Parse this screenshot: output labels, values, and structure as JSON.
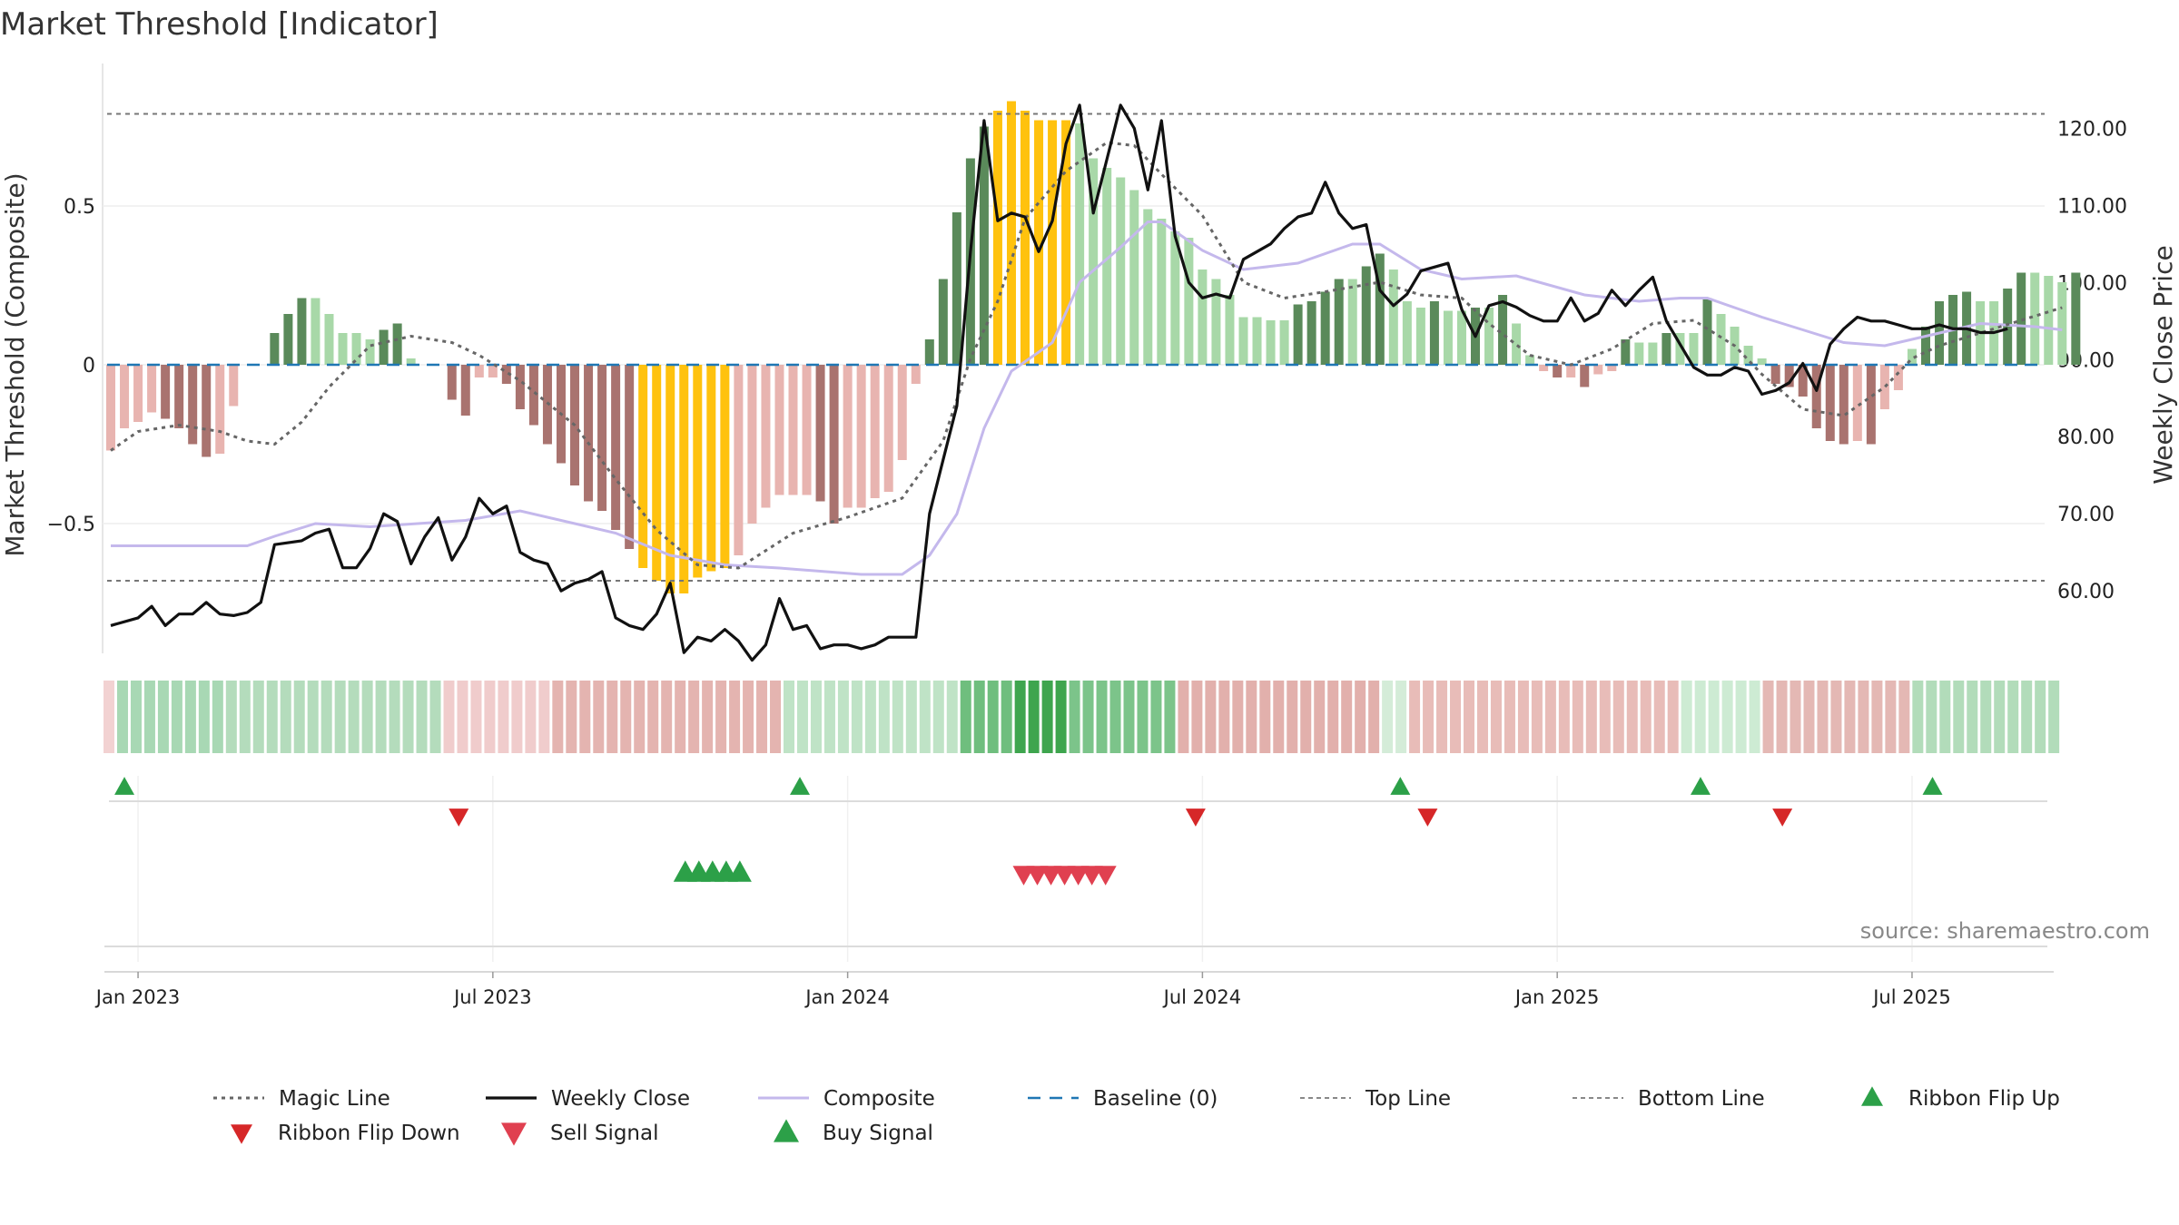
{
  "title": "Market Threshold [Indicator]",
  "source": "source: sharemaestro.com",
  "chart_data": {
    "type": "line",
    "y_left_label": "Market Threshold (Composite)",
    "y_right_label": "Weekly Close Price",
    "y_left_ticks": [
      {
        "v": 0.5,
        "label": "0.5"
      },
      {
        "v": 0,
        "label": "0"
      },
      {
        "v": -0.5,
        "label": "−0.5"
      }
    ],
    "y_left_lim": [
      -0.92,
      0.92
    ],
    "y_right_ticks": [
      "60.00",
      "70.00",
      "80.00",
      "90.00",
      "100.00",
      "110.00",
      "120.00"
    ],
    "y_right_tick_values": [
      60,
      70,
      80,
      90,
      100,
      110,
      120
    ],
    "y_right_lim": [
      51.9,
      128.4
    ],
    "top_line": 0.79,
    "bottom_line": -0.68,
    "x_ticks": [
      "Jan 2023",
      "Jul 2023",
      "Jan 2024",
      "Jul 2024",
      "Jan 2025",
      "Jul 2025"
    ],
    "x_tick_weeks": [
      2,
      28,
      54,
      80,
      106,
      132
    ],
    "composite": [
      [
        0,
        -0.57
      ],
      [
        10,
        -0.57
      ],
      [
        12,
        -0.54
      ],
      [
        15,
        -0.5
      ],
      [
        19,
        -0.51
      ],
      [
        26,
        -0.49
      ],
      [
        30,
        -0.46
      ],
      [
        37,
        -0.53
      ],
      [
        41,
        -0.6
      ],
      [
        45,
        -0.63
      ],
      [
        49,
        -0.64
      ],
      [
        55,
        -0.66
      ],
      [
        58,
        -0.66
      ],
      [
        60,
        -0.6
      ],
      [
        62,
        -0.47
      ],
      [
        64,
        -0.2
      ],
      [
        66,
        -0.02
      ],
      [
        69,
        0.07
      ],
      [
        71,
        0.26
      ],
      [
        74,
        0.37
      ],
      [
        76,
        0.45
      ],
      [
        77,
        0.45
      ],
      [
        80,
        0.36
      ],
      [
        83,
        0.3
      ],
      [
        87,
        0.32
      ],
      [
        91,
        0.38
      ],
      [
        93,
        0.38
      ],
      [
        96,
        0.3
      ],
      [
        99,
        0.27
      ],
      [
        103,
        0.28
      ],
      [
        108,
        0.22
      ],
      [
        112,
        0.2
      ],
      [
        115,
        0.21
      ],
      [
        117,
        0.21
      ],
      [
        121,
        0.15
      ],
      [
        124,
        0.11
      ],
      [
        127,
        0.07
      ],
      [
        130,
        0.06
      ],
      [
        133,
        0.09
      ],
      [
        137,
        0.13
      ],
      [
        141,
        0.12
      ],
      [
        143,
        0.11
      ]
    ],
    "magic_line": [
      [
        0,
        -0.27
      ],
      [
        2,
        -0.21
      ],
      [
        5,
        -0.19
      ],
      [
        8,
        -0.21
      ],
      [
        10,
        -0.24
      ],
      [
        12,
        -0.25
      ],
      [
        14,
        -0.18
      ],
      [
        16,
        -0.07
      ],
      [
        19,
        0.06
      ],
      [
        22,
        0.09
      ],
      [
        25,
        0.07
      ],
      [
        27,
        0.03
      ],
      [
        30,
        -0.05
      ],
      [
        34,
        -0.19
      ],
      [
        37,
        -0.36
      ],
      [
        40,
        -0.52
      ],
      [
        43,
        -0.63
      ],
      [
        46,
        -0.64
      ],
      [
        50,
        -0.53
      ],
      [
        54,
        -0.48
      ],
      [
        58,
        -0.42
      ],
      [
        61,
        -0.24
      ],
      [
        63,
        0.02
      ],
      [
        65,
        0.2
      ],
      [
        67,
        0.46
      ],
      [
        70,
        0.61
      ],
      [
        73,
        0.7
      ],
      [
        75,
        0.69
      ],
      [
        77,
        0.6
      ],
      [
        80,
        0.47
      ],
      [
        83,
        0.26
      ],
      [
        86,
        0.21
      ],
      [
        89,
        0.23
      ],
      [
        93,
        0.26
      ],
      [
        96,
        0.22
      ],
      [
        99,
        0.21
      ],
      [
        101,
        0.13
      ],
      [
        104,
        0.03
      ],
      [
        107,
        0.0
      ],
      [
        110,
        0.05
      ],
      [
        113,
        0.13
      ],
      [
        116,
        0.14
      ],
      [
        119,
        0.06
      ],
      [
        121,
        -0.03
      ],
      [
        124,
        -0.14
      ],
      [
        127,
        -0.16
      ],
      [
        130,
        -0.07
      ],
      [
        132,
        0.02
      ],
      [
        134,
        0.06
      ],
      [
        137,
        0.1
      ],
      [
        140,
        0.14
      ],
      [
        143,
        0.18
      ]
    ],
    "weekly_close": [
      [
        0,
        55.5
      ],
      [
        2,
        56.5
      ],
      [
        3,
        58
      ],
      [
        4,
        55.5
      ],
      [
        5,
        57
      ],
      [
        6,
        57
      ],
      [
        7,
        58.5
      ],
      [
        8,
        57
      ],
      [
        9,
        56.8
      ],
      [
        10,
        57.2
      ],
      [
        11,
        58.5
      ],
      [
        12,
        66
      ],
      [
        14,
        66.5
      ],
      [
        15,
        67.5
      ],
      [
        16,
        68
      ],
      [
        17,
        63
      ],
      [
        18,
        63
      ],
      [
        19,
        65.5
      ],
      [
        20,
        70
      ],
      [
        21,
        69
      ],
      [
        22,
        63.5
      ],
      [
        23,
        67
      ],
      [
        24,
        69.5
      ],
      [
        25,
        64
      ],
      [
        26,
        67
      ],
      [
        27,
        72
      ],
      [
        28,
        70
      ],
      [
        29,
        71
      ],
      [
        30,
        65
      ],
      [
        31,
        64
      ],
      [
        32,
        63.5
      ],
      [
        33,
        60
      ],
      [
        34,
        61
      ],
      [
        35,
        61.5
      ],
      [
        36,
        62.5
      ],
      [
        37,
        56.5
      ],
      [
        38,
        55.5
      ],
      [
        39,
        55
      ],
      [
        40,
        57
      ],
      [
        41,
        61
      ],
      [
        42,
        52
      ],
      [
        43,
        54
      ],
      [
        44,
        53.5
      ],
      [
        45,
        55
      ],
      [
        46,
        53.5
      ],
      [
        47,
        51
      ],
      [
        48,
        53
      ],
      [
        49,
        59
      ],
      [
        50,
        55
      ],
      [
        51,
        55.5
      ],
      [
        52,
        52.5
      ],
      [
        53,
        53
      ],
      [
        54,
        53
      ],
      [
        55,
        52.5
      ],
      [
        56,
        53
      ],
      [
        57,
        54
      ],
      [
        58,
        54
      ],
      [
        59,
        54
      ],
      [
        60,
        70
      ],
      [
        61,
        77
      ],
      [
        62,
        84
      ],
      [
        63,
        104
      ],
      [
        64,
        121
      ],
      [
        65,
        108
      ],
      [
        66,
        109
      ],
      [
        67,
        108.5
      ],
      [
        68,
        104
      ],
      [
        69,
        108
      ],
      [
        70,
        118
      ],
      [
        71,
        123
      ],
      [
        72,
        109
      ],
      [
        73,
        116
      ],
      [
        74,
        123
      ],
      [
        75,
        120
      ],
      [
        76,
        112
      ],
      [
        77,
        121
      ],
      [
        78,
        106
      ],
      [
        79,
        100
      ],
      [
        80,
        98
      ],
      [
        81,
        98.5
      ],
      [
        82,
        98
      ],
      [
        83,
        103
      ],
      [
        84,
        104
      ],
      [
        85,
        105
      ],
      [
        86,
        107
      ],
      [
        87,
        108.5
      ],
      [
        88,
        109
      ],
      [
        89,
        113
      ],
      [
        90,
        109
      ],
      [
        91,
        107
      ],
      [
        92,
        107.5
      ],
      [
        93,
        99
      ],
      [
        94,
        97
      ],
      [
        95,
        98.5
      ],
      [
        96,
        101.5
      ],
      [
        97,
        102
      ],
      [
        98,
        102.5
      ],
      [
        99,
        96.5
      ],
      [
        100,
        93
      ],
      [
        101,
        97
      ],
      [
        102,
        97.5
      ],
      [
        103,
        96.8
      ],
      [
        104,
        95.7
      ],
      [
        105,
        95
      ],
      [
        106,
        95
      ],
      [
        107,
        98
      ],
      [
        108,
        95
      ],
      [
        109,
        96
      ],
      [
        110,
        99
      ],
      [
        111,
        97
      ],
      [
        112,
        99
      ],
      [
        113,
        100.7
      ],
      [
        114,
        95
      ],
      [
        115,
        92
      ],
      [
        116,
        89
      ],
      [
        117,
        88
      ],
      [
        118,
        88
      ],
      [
        119,
        89
      ],
      [
        120,
        88.5
      ],
      [
        121,
        85.5
      ],
      [
        122,
        86
      ],
      [
        123,
        87
      ],
      [
        124,
        89.5
      ],
      [
        125,
        86
      ],
      [
        126,
        92
      ],
      [
        127,
        94
      ],
      [
        128,
        95.5
      ],
      [
        129,
        95
      ],
      [
        130,
        95
      ],
      [
        131,
        94.5
      ],
      [
        132,
        94
      ],
      [
        133,
        94
      ],
      [
        134,
        94.5
      ],
      [
        135,
        94
      ],
      [
        136,
        94
      ],
      [
        137,
        93.5
      ],
      [
        138,
        93.5
      ],
      [
        139,
        94
      ]
    ],
    "histogram": [
      -0.27,
      -0.2,
      -0.18,
      -0.15,
      -0.17,
      -0.2,
      -0.25,
      -0.29,
      -0.28,
      -0.13,
      0,
      0,
      0.1,
      0.16,
      0.21,
      0.21,
      0.16,
      0.1,
      0.1,
      0.08,
      0.11,
      0.13,
      0.02,
      0,
      0,
      -0.11,
      -0.16,
      -0.04,
      -0.04,
      -0.06,
      -0.14,
      -0.19,
      -0.25,
      -0.31,
      -0.38,
      -0.43,
      -0.46,
      -0.52,
      -0.58,
      -0.64,
      -0.68,
      -0.72,
      -0.72,
      -0.67,
      -0.65,
      -0.64,
      -0.6,
      -0.5,
      -0.45,
      -0.41,
      -0.41,
      -0.41,
      -0.43,
      -0.5,
      -0.45,
      -0.45,
      -0.42,
      -0.4,
      -0.3,
      -0.06,
      0.08,
      0.27,
      0.48,
      0.65,
      0.75,
      0.8,
      0.83,
      0.8,
      0.77,
      0.77,
      0.77,
      0.76,
      0.65,
      0.62,
      0.59,
      0.55,
      0.49,
      0.46,
      0.42,
      0.4,
      0.3,
      0.27,
      0.22,
      0.15,
      0.15,
      0.14,
      0.14,
      0.19,
      0.2,
      0.23,
      0.27,
      0.27,
      0.31,
      0.35,
      0.3,
      0.2,
      0.18,
      0.2,
      0.17,
      0.17,
      0.18,
      0.18,
      0.22,
      0.13,
      0.03,
      -0.02,
      -0.04,
      -0.04,
      -0.07,
      -0.03,
      -0.02,
      0.08,
      0.07,
      0.07,
      0.1,
      0.1,
      0.1,
      0.21,
      0.16,
      0.12,
      0.06,
      0.02,
      -0.06,
      -0.07,
      -0.1,
      -0.2,
      -0.24,
      -0.25,
      -0.24,
      -0.25,
      -0.14,
      -0.08,
      0.05,
      0.12,
      0.2,
      0.22,
      0.23,
      0.2,
      0.2,
      0.24,
      0.29,
      0.29,
      0.28,
      0.26,
      0.29
    ],
    "hist_colors": {
      "dark_green": "#5a8a5a",
      "light_green": "#a8d8a8",
      "dark_red": "#a9736f",
      "light_red": "#e8b4b0",
      "gold": "#ffc20e"
    },
    "ribbon": [
      {
        "from": 0,
        "to": 1,
        "color": "#f2d2d2"
      },
      {
        "from": 1,
        "to": 9,
        "color": "#a8d8b4"
      },
      {
        "from": 9,
        "to": 25,
        "color": "#b4dcbc"
      },
      {
        "from": 25,
        "to": 33,
        "color": "#f0cccc"
      },
      {
        "from": 33,
        "to": 50,
        "color": "#e4b4b0"
      },
      {
        "from": 50,
        "to": 63,
        "color": "#bfe3c6"
      },
      {
        "from": 63,
        "to": 67,
        "color": "#6fbe7e"
      },
      {
        "from": 67,
        "to": 71,
        "color": "#3ea54e"
      },
      {
        "from": 71,
        "to": 79,
        "color": "#7cc48a"
      },
      {
        "from": 79,
        "to": 94,
        "color": "#e2b0ac"
      },
      {
        "from": 94,
        "to": 96,
        "color": "#d4ecd8"
      },
      {
        "from": 96,
        "to": 116,
        "color": "#e8bcb8"
      },
      {
        "from": 116,
        "to": 122,
        "color": "#cdebd3"
      },
      {
        "from": 122,
        "to": 133,
        "color": "#e4b8b4"
      },
      {
        "from": 133,
        "to": 144,
        "color": "#b2dcba"
      }
    ],
    "ribbon_flip_up": [
      1,
      50.5,
      94.5,
      116.5,
      133.5
    ],
    "ribbon_flip_down": [
      25.5,
      79.5,
      96.5,
      122.5
    ],
    "buy_signals": [
      42.1,
      43.1,
      44.1,
      45.1,
      46.1
    ],
    "sell_signals": [
      66.9,
      67.9,
      68.9,
      69.9,
      70.9,
      71.9,
      72.9
    ],
    "colors": {
      "ribbon_flip_up": "#2ca048",
      "ribbon_flip_down": "#d62728",
      "sell": "#e04050",
      "buy": "#2ca048",
      "composite": "#c4b8ec",
      "magic": "#666666",
      "weekly": "#111111",
      "baseline": "#1f77b4"
    }
  },
  "legend": [
    {
      "key": "magic",
      "label": "Magic Line"
    },
    {
      "key": "weekly",
      "label": "Weekly Close"
    },
    {
      "key": "composite",
      "label": "Composite"
    },
    {
      "key": "baseline",
      "label": "Baseline (0)"
    },
    {
      "key": "top",
      "label": "Top Line"
    },
    {
      "key": "bottom",
      "label": "Bottom Line"
    },
    {
      "key": "flipup",
      "label": "Ribbon Flip Up"
    },
    {
      "key": "flipdown",
      "label": "Ribbon Flip Down"
    },
    {
      "key": "sell",
      "label": "Sell Signal"
    },
    {
      "key": "buy",
      "label": "Buy Signal"
    }
  ]
}
